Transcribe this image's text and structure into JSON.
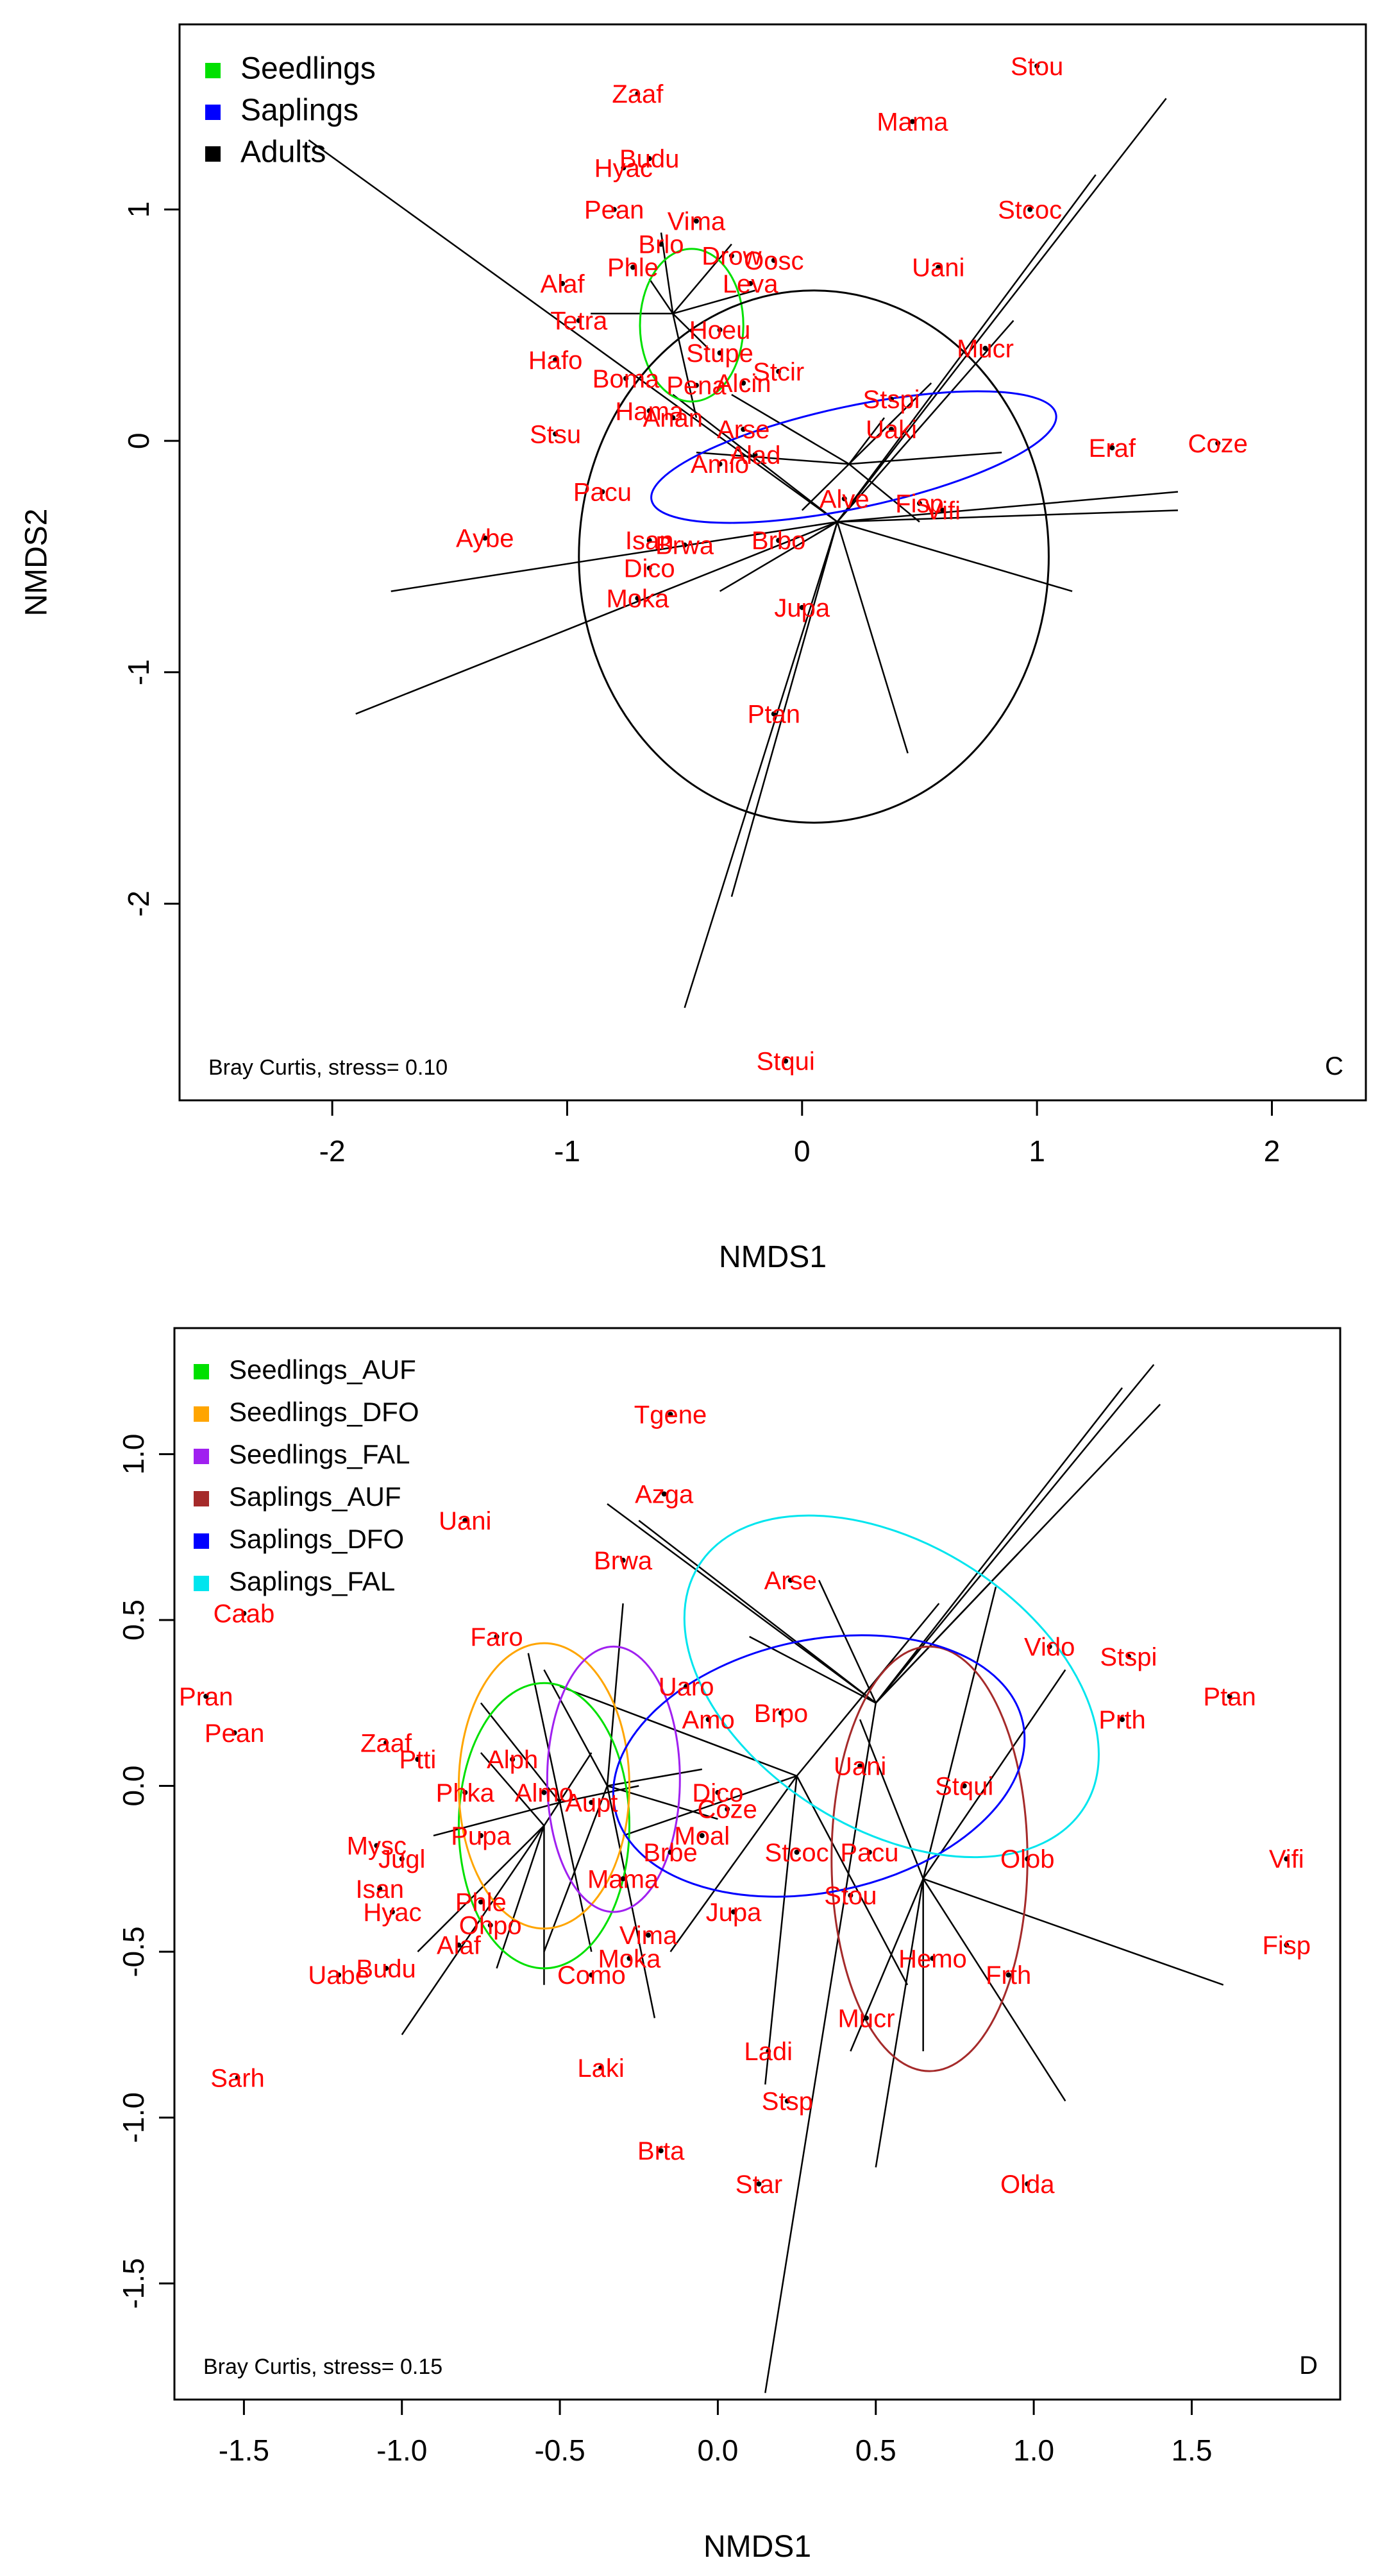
{
  "colors": {
    "label": "#ff0000",
    "point": "#000000",
    "Seedlings": "#00e000",
    "Saplings": "#0000ff",
    "Adults": "#000000",
    "Seedlings_AUF": "#00e000",
    "Seedlings_DFO": "#ffa500",
    "Seedlings_FAL": "#a020f0",
    "Saplings_AUF": "#a52a2a",
    "Saplings_DFO": "#0000ff",
    "Saplings_FAL": "#00e5ee"
  },
  "chart_data": [
    {
      "type": "scatter",
      "panel_letter": "C",
      "xlabel": "NMDS1",
      "ylabel": "NMDS2",
      "xlim": [
        -2.65,
        2.4
      ],
      "ylim": [
        -2.85,
        1.8
      ],
      "xticks": [
        -2,
        -1,
        0,
        1,
        2
      ],
      "yticks": [
        -2,
        -1,
        0,
        1
      ],
      "xtick_labels": [
        "-2",
        "-1",
        "0",
        "1",
        "2"
      ],
      "ytick_labels": [
        "-2",
        "-1",
        "0",
        "1"
      ],
      "stress_note": "Bray Curtis, stress= 0.10",
      "legend": [
        {
          "label": "Seedlings",
          "group": "Seedlings"
        },
        {
          "label": "Saplings",
          "group": "Saplings"
        },
        {
          "label": "Adults",
          "group": "Adults"
        }
      ],
      "groups": [
        {
          "name": "Seedlings",
          "centroid": [
            -0.55,
            0.55
          ],
          "ellipse": {
            "cx": -0.47,
            "cy": 0.5,
            "rx": 0.22,
            "ry": 0.33,
            "angle": 0
          },
          "spokes": [
            [
              -0.6,
              0.9
            ],
            [
              -0.3,
              0.85
            ],
            [
              -0.2,
              0.65
            ],
            [
              -0.45,
              0.1
            ],
            [
              -0.9,
              0.55
            ],
            [
              -0.65,
              0.7
            ],
            [
              -0.4,
              0.4
            ]
          ]
        },
        {
          "name": "Saplings",
          "centroid": [
            0.2,
            -0.1
          ],
          "ellipse": {
            "cx": 0.22,
            "cy": -0.07,
            "rx": 0.88,
            "ry": 0.22,
            "angle": -12
          },
          "spokes": [
            [
              0.55,
              0.25
            ],
            [
              0.85,
              -0.05
            ],
            [
              0.5,
              -0.35
            ],
            [
              -0.45,
              -0.05
            ],
            [
              -0.3,
              0.2
            ],
            [
              0.0,
              -0.3
            ],
            [
              0.35,
              0.1
            ]
          ]
        },
        {
          "name": "Adults",
          "centroid": [
            0.15,
            -0.35
          ],
          "ellipse": {
            "cx": 0.05,
            "cy": -0.5,
            "rx": 1.0,
            "ry": 1.15,
            "angle": 0
          },
          "spokes": [
            [
              -2.1,
              1.3
            ],
            [
              -1.75,
              -0.65
            ],
            [
              -1.9,
              -1.18
            ],
            [
              -0.5,
              -2.45
            ],
            [
              -0.3,
              -1.97
            ],
            [
              0.45,
              -1.35
            ],
            [
              1.6,
              -0.3
            ],
            [
              1.15,
              -0.65
            ],
            [
              1.6,
              -0.22
            ],
            [
              1.55,
              1.48
            ],
            [
              1.25,
              1.15
            ],
            [
              0.9,
              0.52
            ],
            [
              -0.35,
              -0.65
            ],
            [
              -0.55,
              0.2
            ]
          ]
        }
      ],
      "points": [
        {
          "label": "Stou",
          "x": 1.0,
          "y": 1.62
        },
        {
          "label": "Mama",
          "x": 0.47,
          "y": 1.38
        },
        {
          "label": "Stcoc",
          "x": 0.97,
          "y": 1.0
        },
        {
          "label": "Uani",
          "x": 0.58,
          "y": 0.75
        },
        {
          "label": "Mucr",
          "x": 0.78,
          "y": 0.4
        },
        {
          "label": "Stspi",
          "x": 0.38,
          "y": 0.18
        },
        {
          "label": "Uaki",
          "x": 0.38,
          "y": 0.05
        },
        {
          "label": "Eraf",
          "x": 1.32,
          "y": -0.03
        },
        {
          "label": "Coze",
          "x": 1.77,
          "y": -0.01
        },
        {
          "label": "Fisp",
          "x": 0.5,
          "y": -0.27
        },
        {
          "label": "Vifi",
          "x": 0.6,
          "y": -0.3
        },
        {
          "label": "Alve",
          "x": 0.18,
          "y": -0.25
        },
        {
          "label": "Jupa",
          "x": 0.0,
          "y": -0.72
        },
        {
          "label": "Ptan",
          "x": -0.12,
          "y": -1.18
        },
        {
          "label": "Stqui",
          "x": -0.07,
          "y": -2.68
        },
        {
          "label": "Pean",
          "x": -0.8,
          "y": 1.0
        },
        {
          "label": "Vima",
          "x": -0.45,
          "y": 0.95
        },
        {
          "label": "Brlo",
          "x": -0.6,
          "y": 0.85
        },
        {
          "label": "Phle",
          "x": -0.72,
          "y": 0.75
        },
        {
          "label": "Alaf",
          "x": -1.02,
          "y": 0.68
        },
        {
          "label": "Hyac",
          "x": -0.76,
          "y": 1.18
        },
        {
          "label": "Budu",
          "x": -0.65,
          "y": 1.22
        },
        {
          "label": "Zaaf",
          "x": -0.7,
          "y": 1.5
        },
        {
          "label": "Tetra",
          "x": -0.95,
          "y": 0.52
        },
        {
          "label": "Hafo",
          "x": -1.05,
          "y": 0.35
        },
        {
          "label": "Boma",
          "x": -0.75,
          "y": 0.27
        },
        {
          "label": "Hama",
          "x": -0.65,
          "y": 0.13
        },
        {
          "label": "Stsu",
          "x": -1.05,
          "y": 0.03
        },
        {
          "label": "Pacu",
          "x": -0.85,
          "y": -0.22
        },
        {
          "label": "Aybe",
          "x": -1.35,
          "y": -0.42
        },
        {
          "label": "Isan",
          "x": -0.65,
          "y": -0.43
        },
        {
          "label": "Brwa",
          "x": -0.5,
          "y": -0.45
        },
        {
          "label": "Dico",
          "x": -0.65,
          "y": -0.55
        },
        {
          "label": "Moka",
          "x": -0.7,
          "y": -0.68
        },
        {
          "label": "Brbo",
          "x": -0.1,
          "y": -0.43
        },
        {
          "label": "Arse",
          "x": -0.25,
          "y": 0.05
        },
        {
          "label": "Alad",
          "x": -0.2,
          "y": -0.06
        },
        {
          "label": "Amio",
          "x": -0.35,
          "y": -0.1
        },
        {
          "label": "Stcir",
          "x": -0.1,
          "y": 0.3
        },
        {
          "label": "Alcin",
          "x": -0.25,
          "y": 0.25
        },
        {
          "label": "Pena",
          "x": -0.45,
          "y": 0.24
        },
        {
          "label": "Stupe",
          "x": -0.35,
          "y": 0.38
        },
        {
          "label": "Drow",
          "x": -0.3,
          "y": 0.8
        },
        {
          "label": "Oosc",
          "x": -0.12,
          "y": 0.78
        },
        {
          "label": "Leva",
          "x": -0.22,
          "y": 0.68
        },
        {
          "label": "Hoeu",
          "x": -0.35,
          "y": 0.48
        },
        {
          "label": "Anan",
          "x": -0.55,
          "y": 0.1
        }
      ]
    },
    {
      "type": "scatter",
      "panel_letter": "D",
      "xlabel": "NMDS1",
      "ylabel": "",
      "xlim": [
        -1.72,
        1.97
      ],
      "ylim": [
        -1.85,
        1.38
      ],
      "xticks": [
        -1.5,
        -1.0,
        -0.5,
        0.0,
        0.5,
        1.0,
        1.5
      ],
      "yticks": [
        -1.5,
        -1.0,
        -0.5,
        0.0,
        0.5,
        1.0
      ],
      "xtick_labels": [
        "-1.5",
        "-1.0",
        "-0.5",
        "0.0",
        "0.5",
        "1.0",
        "1.5"
      ],
      "ytick_labels": [
        "-1.5",
        "-1.0",
        "-0.5",
        "0.0",
        "0.5",
        "1.0"
      ],
      "stress_note": "Bray Curtis, stress= 0.15",
      "legend": [
        {
          "label": "Seedlings_AUF",
          "group": "Seedlings_AUF"
        },
        {
          "label": "Seedlings_DFO",
          "group": "Seedlings_DFO"
        },
        {
          "label": "Seedlings_FAL",
          "group": "Seedlings_FAL"
        },
        {
          "label": "Saplings_AUF",
          "group": "Saplings_AUF"
        },
        {
          "label": "Saplings_DFO",
          "group": "Saplings_DFO"
        },
        {
          "label": "Saplings_FAL",
          "group": "Saplings_FAL"
        }
      ],
      "groups": [
        {
          "name": "Seedlings_AUF",
          "centroid": [
            -0.55,
            -0.12
          ],
          "ellipse": {
            "cx": -0.55,
            "cy": -0.12,
            "rx": 0.27,
            "ry": 0.43,
            "angle": 0
          },
          "spokes": [
            [
              -1.0,
              -0.75
            ],
            [
              -0.7,
              -0.55
            ],
            [
              -0.55,
              -0.6
            ],
            [
              -0.75,
              0.1
            ],
            [
              -0.95,
              -0.5
            ],
            [
              -0.4,
              0.1
            ]
          ]
        },
        {
          "name": "Seedlings_DFO",
          "centroid": [
            -0.5,
            -0.05
          ],
          "ellipse": {
            "cx": -0.55,
            "cy": 0.0,
            "rx": 0.27,
            "ry": 0.43,
            "angle": 0
          },
          "spokes": [
            [
              -0.6,
              0.4
            ],
            [
              -0.25,
              0.0
            ],
            [
              -0.75,
              0.25
            ],
            [
              -0.4,
              -0.5
            ],
            [
              -0.9,
              -0.15
            ]
          ]
        },
        {
          "name": "Seedlings_FAL",
          "centroid": [
            -0.35,
            0.0
          ],
          "ellipse": {
            "cx": -0.33,
            "cy": 0.02,
            "rx": 0.21,
            "ry": 0.4,
            "angle": 0
          },
          "spokes": [
            [
              -0.3,
              0.55
            ],
            [
              -0.2,
              -0.7
            ],
            [
              -0.55,
              -0.5
            ],
            [
              -0.55,
              0.35
            ],
            [
              -0.05,
              0.05
            ],
            [
              0.0,
              -0.1
            ]
          ]
        },
        {
          "name": "Saplings_AUF",
          "centroid": [
            0.65,
            -0.28
          ],
          "ellipse": {
            "cx": 0.67,
            "cy": -0.22,
            "rx": 0.31,
            "ry": 0.64,
            "angle": 0
          },
          "spokes": [
            [
              0.88,
              0.6
            ],
            [
              1.1,
              0.35
            ],
            [
              0.5,
              -1.15
            ],
            [
              0.42,
              -0.8
            ],
            [
              0.65,
              -0.8
            ],
            [
              1.6,
              -0.6
            ],
            [
              1.1,
              -0.95
            ],
            [
              0.45,
              0.2
            ]
          ]
        },
        {
          "name": "Saplings_DFO",
          "centroid": [
            0.25,
            0.03
          ],
          "ellipse": {
            "cx": 0.32,
            "cy": 0.06,
            "rx": 0.66,
            "ry": 0.38,
            "angle": -12
          },
          "spokes": [
            [
              0.7,
              0.55
            ],
            [
              -0.15,
              -0.5
            ],
            [
              0.15,
              -0.9
            ],
            [
              0.6,
              -0.6
            ],
            [
              -0.5,
              0.3
            ],
            [
              -0.3,
              -0.15
            ]
          ]
        },
        {
          "name": "Saplings_FAL",
          "centroid": [
            0.5,
            0.25
          ],
          "ellipse": {
            "cx": 0.55,
            "cy": 0.3,
            "rx": 0.72,
            "ry": 0.43,
            "angle": 32
          },
          "spokes": [
            [
              1.38,
              1.27
            ],
            [
              1.28,
              1.2
            ],
            [
              1.4,
              1.15
            ],
            [
              0.15,
              -1.83
            ],
            [
              0.32,
              0.62
            ],
            [
              -0.25,
              0.8
            ],
            [
              0.95,
              0.7
            ],
            [
              0.1,
              0.45
            ],
            [
              -0.35,
              0.85
            ]
          ]
        }
      ],
      "points": [
        {
          "label": "Tgene",
          "x": -0.15,
          "y": 1.12
        },
        {
          "label": "Azga",
          "x": -0.17,
          "y": 0.88
        },
        {
          "label": "Uani",
          "x": -0.8,
          "y": 0.8
        },
        {
          "label": "Brwa",
          "x": -0.3,
          "y": 0.68
        },
        {
          "label": "Caab",
          "x": -1.5,
          "y": 0.52
        },
        {
          "label": "Arse",
          "x": 0.23,
          "y": 0.62
        },
        {
          "label": "Faro",
          "x": -0.7,
          "y": 0.45
        },
        {
          "label": "Vido",
          "x": 1.05,
          "y": 0.42
        },
        {
          "label": "Stspi",
          "x": 1.3,
          "y": 0.39
        },
        {
          "label": "Ptan",
          "x": 1.62,
          "y": 0.27
        },
        {
          "label": "Prth",
          "x": 1.28,
          "y": 0.2
        },
        {
          "label": "Pran",
          "x": -1.62,
          "y": 0.27
        },
        {
          "label": "Pean",
          "x": -1.53,
          "y": 0.16
        },
        {
          "label": "Zaaf",
          "x": -1.05,
          "y": 0.13
        },
        {
          "label": "Ptti",
          "x": -0.95,
          "y": 0.08
        },
        {
          "label": "Uaro",
          "x": -0.1,
          "y": 0.3
        },
        {
          "label": "Amo",
          "x": -0.03,
          "y": 0.2
        },
        {
          "label": "Brpo",
          "x": 0.2,
          "y": 0.22
        },
        {
          "label": "Uani",
          "x": 0.45,
          "y": 0.06
        },
        {
          "label": "Stqui",
          "x": 0.78,
          "y": 0.0
        },
        {
          "label": "Dico",
          "x": 0.0,
          "y": -0.02
        },
        {
          "label": "Coze",
          "x": 0.03,
          "y": -0.07
        },
        {
          "label": "Olob",
          "x": 0.98,
          "y": -0.22
        },
        {
          "label": "Vifi",
          "x": 1.8,
          "y": -0.22
        },
        {
          "label": "Stcoc",
          "x": 0.25,
          "y": -0.2
        },
        {
          "label": "Pacu",
          "x": 0.48,
          "y": -0.2
        },
        {
          "label": "Stou",
          "x": 0.42,
          "y": -0.33
        },
        {
          "label": "Jupa",
          "x": 0.05,
          "y": -0.38
        },
        {
          "label": "Fisp",
          "x": 1.8,
          "y": -0.48
        },
        {
          "label": "Hemo",
          "x": 0.68,
          "y": -0.52
        },
        {
          "label": "Frth",
          "x": 0.92,
          "y": -0.57
        },
        {
          "label": "Mucr",
          "x": 0.47,
          "y": -0.7
        },
        {
          "label": "Ladi",
          "x": 0.16,
          "y": -0.8
        },
        {
          "label": "Stsp",
          "x": 0.22,
          "y": -0.95
        },
        {
          "label": "Star",
          "x": 0.13,
          "y": -1.2
        },
        {
          "label": "Olda",
          "x": 0.98,
          "y": -1.2
        },
        {
          "label": "Brta",
          "x": -0.18,
          "y": -1.1
        },
        {
          "label": "Laki",
          "x": -0.37,
          "y": -0.85
        },
        {
          "label": "Mysc",
          "x": -1.08,
          "y": -0.18
        },
        {
          "label": "Jugl",
          "x": -1.0,
          "y": -0.22
        },
        {
          "label": "Isan",
          "x": -1.07,
          "y": -0.31
        },
        {
          "label": "Hyac",
          "x": -1.03,
          "y": -0.38
        },
        {
          "label": "Phle",
          "x": -0.75,
          "y": -0.35
        },
        {
          "label": "Ohpo",
          "x": -0.72,
          "y": -0.42
        },
        {
          "label": "Alaf",
          "x": -0.82,
          "y": -0.48
        },
        {
          "label": "Budu",
          "x": -1.05,
          "y": -0.55
        },
        {
          "label": "Uabe",
          "x": -1.2,
          "y": -0.57
        },
        {
          "label": "Sarh",
          "x": -1.52,
          "y": -0.88
        },
        {
          "label": "Phka",
          "x": -0.8,
          "y": -0.02
        },
        {
          "label": "Pupa",
          "x": -0.75,
          "y": -0.15
        },
        {
          "label": "Mama",
          "x": -0.3,
          "y": -0.28
        },
        {
          "label": "Vima",
          "x": -0.22,
          "y": -0.45
        },
        {
          "label": "Moka",
          "x": -0.28,
          "y": -0.52
        },
        {
          "label": "Como",
          "x": -0.4,
          "y": -0.57
        },
        {
          "label": "Moal",
          "x": -0.05,
          "y": -0.15
        },
        {
          "label": "Brbe",
          "x": -0.15,
          "y": -0.2
        },
        {
          "label": "Alph",
          "x": -0.65,
          "y": 0.08
        },
        {
          "label": "Aupt",
          "x": -0.4,
          "y": -0.05
        },
        {
          "label": "Almo",
          "x": -0.55,
          "y": -0.02
        }
      ]
    }
  ]
}
